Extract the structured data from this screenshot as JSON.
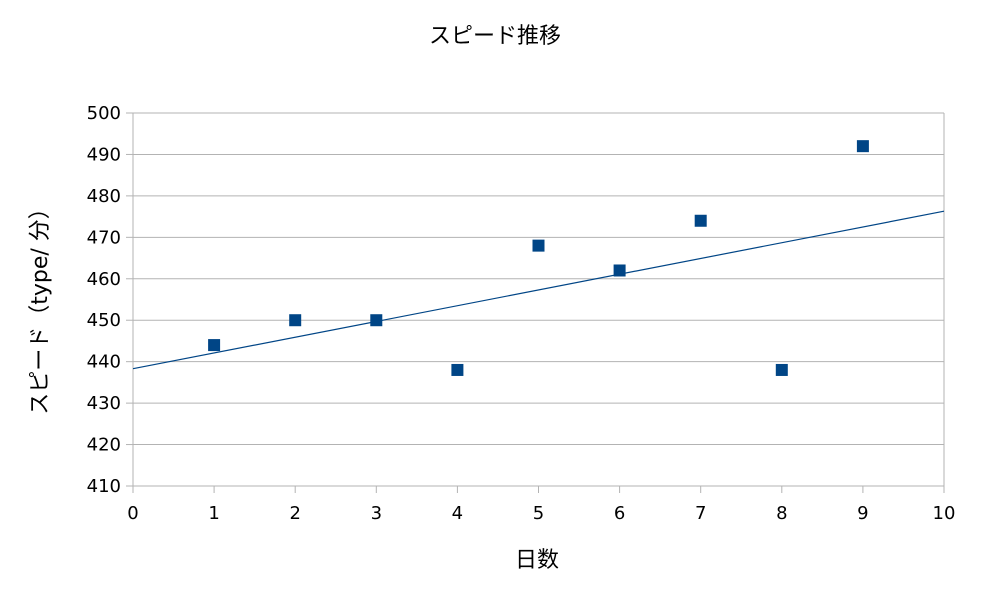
{
  "chart_data": {
    "type": "scatter",
    "title": "スピード推移",
    "xlabel": "日数",
    "ylabel": "スピード（type/ 分）",
    "xlim": [
      0,
      10
    ],
    "ylim": [
      410,
      500
    ],
    "xticks": [
      0,
      1,
      2,
      3,
      4,
      5,
      6,
      7,
      8,
      9,
      10
    ],
    "yticks": [
      410,
      420,
      430,
      440,
      450,
      460,
      470,
      480,
      490,
      500
    ],
    "grid": true,
    "legend": "none",
    "series": [
      {
        "x": [
          1,
          2,
          3,
          4,
          5,
          6,
          7,
          8,
          9
        ],
        "y": [
          444,
          450,
          450,
          438,
          468,
          462,
          474,
          438,
          492
        ],
        "marker": "square",
        "color": "#004586"
      }
    ],
    "trendline": {
      "type": "linear",
      "x": [
        0,
        10
      ],
      "y": [
        438.3,
        476.3
      ],
      "color": "#004586"
    }
  }
}
